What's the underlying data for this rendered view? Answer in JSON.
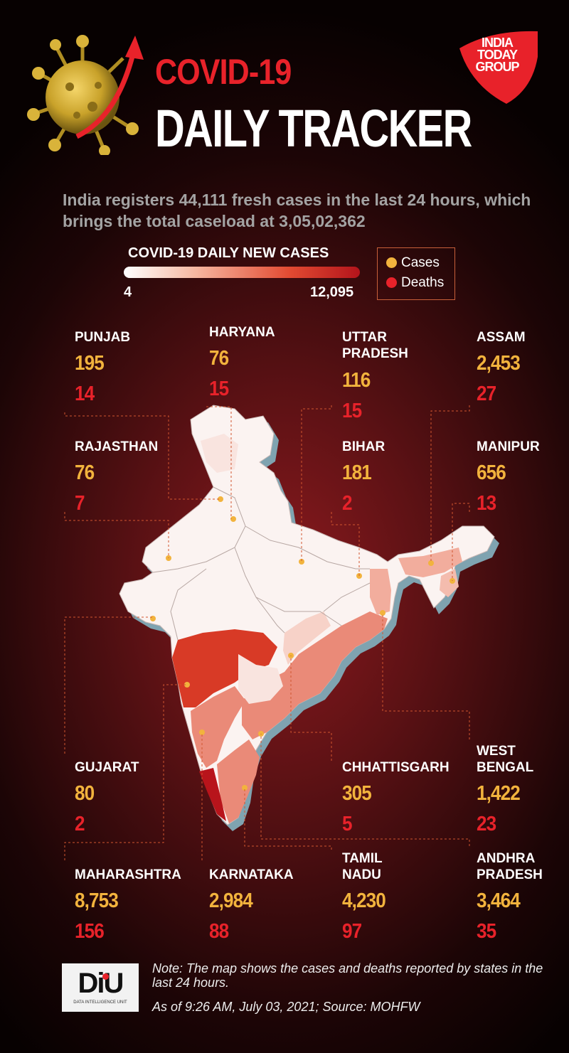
{
  "header": {
    "title_line1": "COVID-19",
    "title_line2": "DAILY TRACKER",
    "headline": "India registers 44,111 fresh cases in the last 24 hours, which brings the total caseload at 3,05,02,362"
  },
  "brand": {
    "logo_text_1": "INDIA",
    "logo_text_2": "TODAY",
    "logo_text_3": "GROUP",
    "diu_text": "DiU",
    "diu_sub": "DATA INTELLIGENCE UNIT"
  },
  "legend": {
    "scale_title": "COVID-19 DAILY NEW CASES",
    "scale_min": "4",
    "scale_max": "12,095",
    "cases_label": "Cases",
    "deaths_label": "Deaths"
  },
  "colors": {
    "cases": "#f2b33d",
    "deaths": "#e8222a",
    "scale_low": "#ffffff",
    "scale_high": "#b3141b"
  },
  "states": [
    {
      "name": "PUNJAB",
      "cases": "195",
      "deaths": "14"
    },
    {
      "name": "HARYANA",
      "cases": "76",
      "deaths": "15"
    },
    {
      "name": "UTTAR\nPRADESH",
      "cases": "116",
      "deaths": "15"
    },
    {
      "name": "ASSAM",
      "cases": "2,453",
      "deaths": "27"
    },
    {
      "name": "RAJASTHAN",
      "cases": "76",
      "deaths": "7"
    },
    {
      "name": "BIHAR",
      "cases": "181",
      "deaths": "2"
    },
    {
      "name": "MANIPUR",
      "cases": "656",
      "deaths": "13"
    },
    {
      "name": "GUJARAT",
      "cases": "80",
      "deaths": "2"
    },
    {
      "name": "CHHATTISGARH",
      "cases": "305",
      "deaths": "5"
    },
    {
      "name": "WEST\nBENGAL",
      "cases": "1,422",
      "deaths": "23"
    },
    {
      "name": "MAHARASHTRA",
      "cases": "8,753",
      "deaths": "156"
    },
    {
      "name": "KARNATAKA",
      "cases": "2,984",
      "deaths": "88"
    },
    {
      "name": "TAMIL\nNADU",
      "cases": "4,230",
      "deaths": "97"
    },
    {
      "name": "ANDHRA\nPRADESH",
      "cases": "3,464",
      "deaths": "35"
    }
  ],
  "footer": {
    "note": "Note: The map shows the cases and deaths reported by states in the last 24 hours.",
    "as_of": "As of 9:26 AM, July 03, 2021; Source: MOHFW"
  }
}
